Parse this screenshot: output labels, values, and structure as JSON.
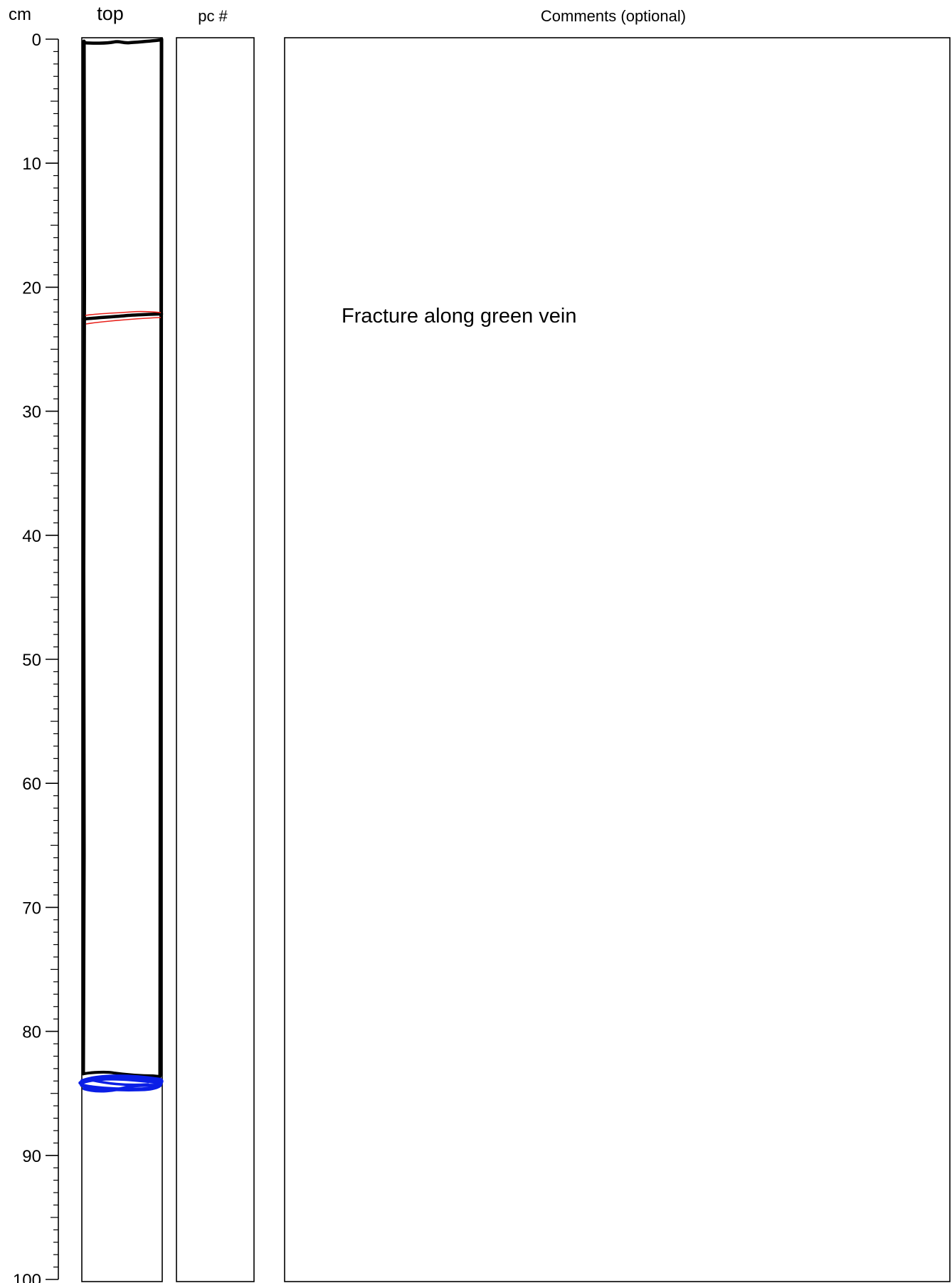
{
  "headers": {
    "depth_unit": "cm",
    "core_column": "top",
    "piece_column": "pc #",
    "comments_column": "Comments (optional)"
  },
  "scale": {
    "min": 0,
    "max": 100,
    "major_step": 10,
    "minor_step": 1,
    "labels": [
      "0",
      "10",
      "20",
      "30",
      "40",
      "50",
      "60",
      "70",
      "80",
      "90",
      "100"
    ]
  },
  "core_sketch": {
    "core_top_cm": 0,
    "core_bottom_cm": 83.5,
    "fracture_cm": 22.3,
    "vein_colors": {
      "fracture_vein": "#e8201a",
      "bottom_vein": "#0a1ee6"
    }
  },
  "comments": [
    {
      "text": "Fracture along green vein",
      "depth_cm": 22.3
    }
  ],
  "colors": {
    "ink": "#000000",
    "red_vein": "#e8201a",
    "blue_vein": "#0a1ee6"
  }
}
